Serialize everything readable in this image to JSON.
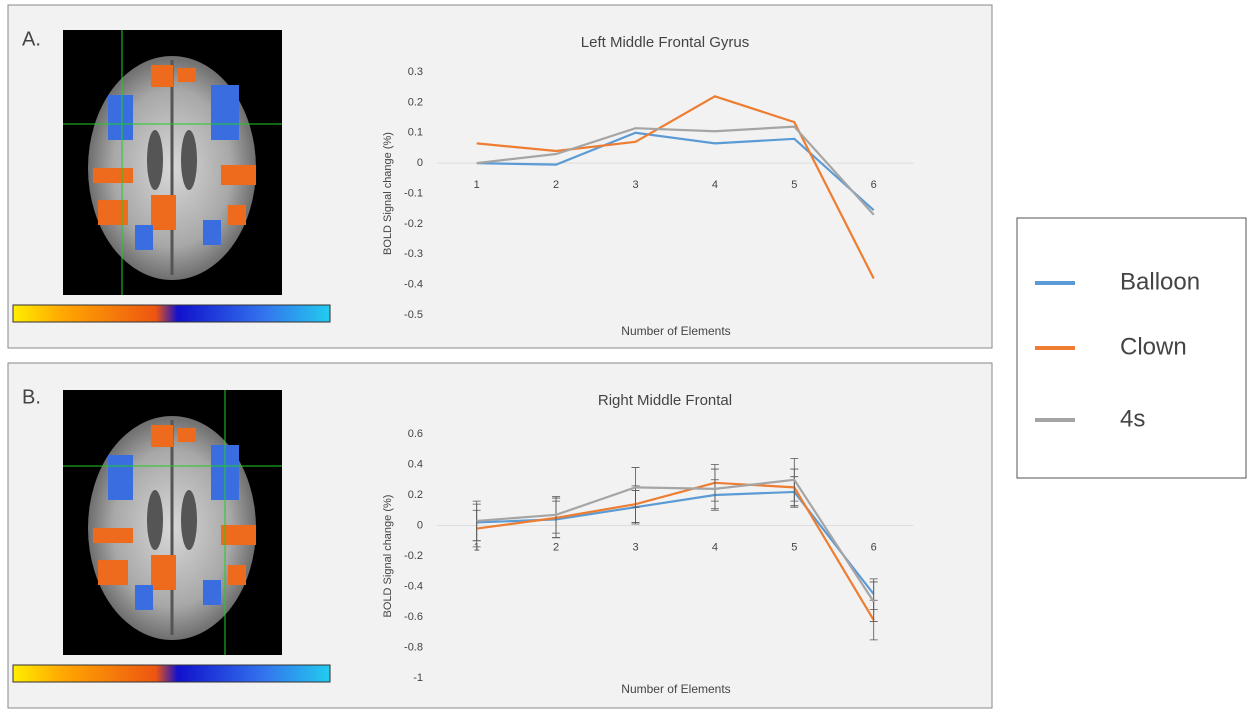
{
  "chart_data": [
    {
      "type": "line",
      "panel_label": "A.",
      "title": "Left Middle Frontal Gyrus",
      "y_label": "BOLD Signal change (%)",
      "x_label": "Number of Elements",
      "categories": [
        "1",
        "2",
        "3",
        "4",
        "5",
        "6"
      ],
      "ylim": [
        -0.5,
        0.3
      ],
      "yticks": [
        0.3,
        0.2,
        0.1,
        0,
        -0.1,
        -0.2,
        -0.3,
        -0.4,
        -0.5
      ],
      "series": [
        {
          "name": "Balloon",
          "color": "#5b9bd5",
          "values": [
            0,
            -0.005,
            0.1,
            0.065,
            0.08,
            -0.155
          ]
        },
        {
          "name": "Clown",
          "color": "#ed7d31",
          "values": [
            0.065,
            0.04,
            0.07,
            0.22,
            0.135,
            -0.38
          ]
        },
        {
          "name": "4s",
          "color": "#a5a5a5",
          "values": [
            0,
            0.03,
            0.115,
            0.105,
            0.12,
            -0.17
          ]
        }
      ]
    },
    {
      "type": "line",
      "panel_label": "B.",
      "title": "Right Middle Frontal",
      "y_label": "BOLD Signal change (%)",
      "x_label": "Number of Elements",
      "categories": [
        "1",
        "2",
        "3",
        "4",
        "5",
        "6"
      ],
      "ylim": [
        -1,
        0.6
      ],
      "yticks": [
        0.6,
        0.4,
        0.2,
        0,
        -0.2,
        -0.4,
        -0.6,
        -0.8,
        -1
      ],
      "series": [
        {
          "name": "Balloon",
          "color": "#5b9bd5",
          "values": [
            0.02,
            0.04,
            0.12,
            0.2,
            0.22,
            -0.45
          ],
          "errors": [
            0.12,
            0.12,
            0.11,
            0.1,
            0.1,
            0.1
          ]
        },
        {
          "name": "Clown",
          "color": "#ed7d31",
          "values": [
            -0.02,
            0.05,
            0.14,
            0.28,
            0.25,
            -0.62
          ],
          "errors": [
            0.12,
            0.13,
            0.12,
            0.12,
            0.12,
            0.13
          ]
        },
        {
          "name": "4s",
          "color": "#a5a5a5",
          "values": [
            0.03,
            0.07,
            0.25,
            0.24,
            0.3,
            -0.5
          ],
          "errors": [
            0.13,
            0.12,
            0.13,
            0.13,
            0.14,
            0.13
          ]
        }
      ]
    }
  ]
}
